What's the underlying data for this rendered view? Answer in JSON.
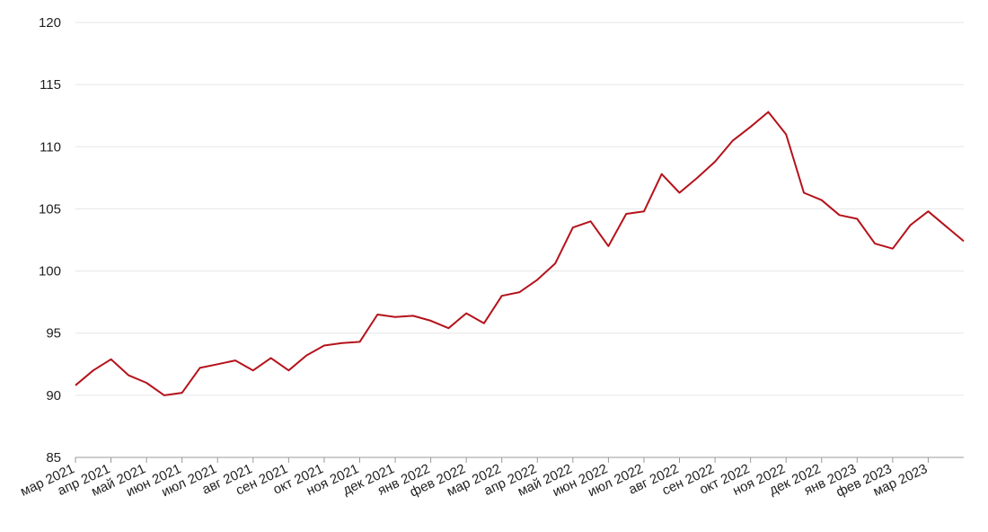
{
  "chart_data": {
    "type": "line",
    "categories": [
      "мар 2021",
      null,
      "апр 2021",
      null,
      "май 2021",
      null,
      "июн 2021",
      null,
      "июл 2021",
      null,
      "авг 2021",
      null,
      "сен 2021",
      null,
      "окт 2021",
      null,
      "ноя 2021",
      null,
      "дек 2021",
      null,
      "янв 2022",
      null,
      "фев 2022",
      null,
      "мар 2022",
      null,
      "апр 2022",
      null,
      "май 2022",
      null,
      "июн 2022",
      null,
      "июл 2022",
      null,
      "авг 2022",
      null,
      "сен 2022",
      null,
      "окт 2022",
      null,
      "ноя 2022",
      null,
      "дек 2022",
      null,
      "янв 2023",
      null,
      "фев 2023",
      null,
      "мар 2023",
      null,
      null
    ],
    "series": [
      {
        "color": "#b5121b",
        "values": [
          90.8,
          92.0,
          92.9,
          91.6,
          91.0,
          90.0,
          90.2,
          92.2,
          92.5,
          92.8,
          92.0,
          93.0,
          92.0,
          93.2,
          94.0,
          94.2,
          94.3,
          96.5,
          96.3,
          96.4,
          96.0,
          95.4,
          96.6,
          95.8,
          98.0,
          98.3,
          99.3,
          100.6,
          103.5,
          104.0,
          102.0,
          104.6,
          104.8,
          107.8,
          106.3,
          107.5,
          108.8,
          110.5,
          111.6,
          112.8,
          111.0,
          106.3,
          105.7,
          104.5,
          104.2,
          102.2,
          101.8,
          103.7,
          104.8,
          103.6,
          102.4
        ]
      }
    ],
    "ylim": [
      85,
      120
    ],
    "yticks": [
      85,
      90,
      95,
      100,
      105,
      110,
      115,
      120
    ],
    "grid": true
  }
}
